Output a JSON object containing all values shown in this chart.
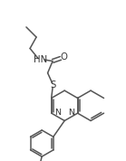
{
  "bg_color": "#ffffff",
  "line_color": "#555555",
  "text_color": "#333333",
  "line_width": 1.1,
  "font_size": 6.8,
  "fig_width": 1.39,
  "fig_height": 1.78,
  "dpi": 100,
  "xlim": [
    0,
    100
  ],
  "ylim": [
    0,
    128
  ]
}
